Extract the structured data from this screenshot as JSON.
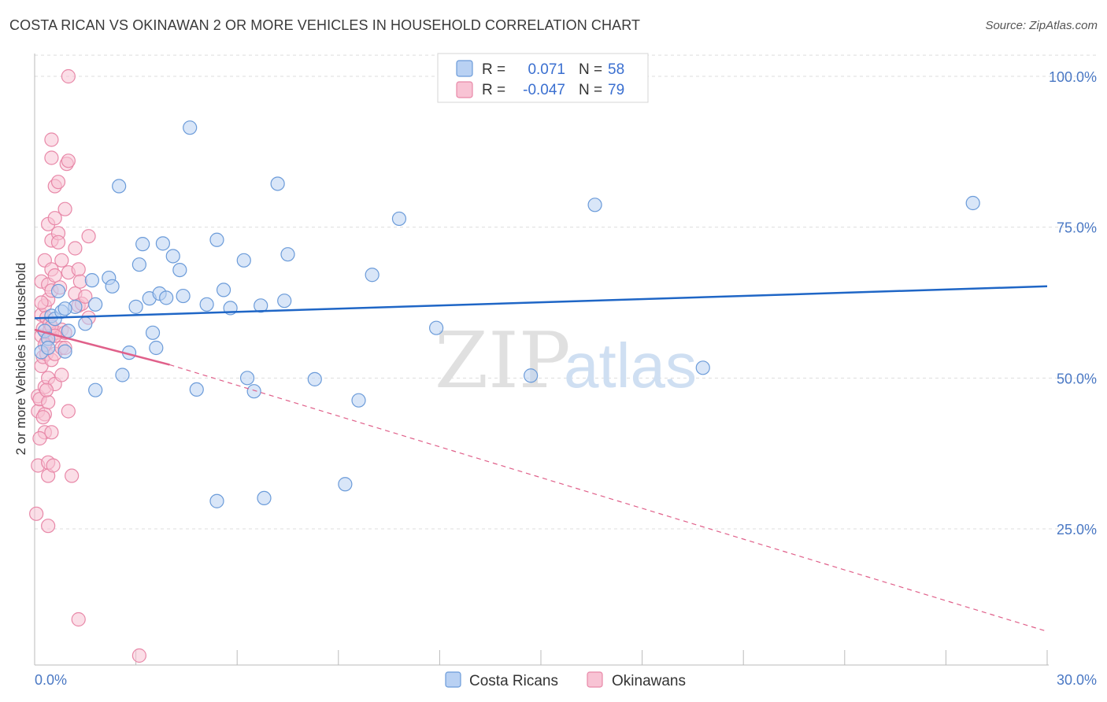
{
  "header": {
    "title": "COSTA RICAN VS OKINAWAN 2 OR MORE VEHICLES IN HOUSEHOLD CORRELATION CHART",
    "source": "Source: ZipAtlas.com"
  },
  "watermark": {
    "zip": "ZIP",
    "atlas": "atlas"
  },
  "legend": {
    "rows": [
      {
        "r_label": "R =",
        "r_value": "0.071",
        "n_label": "N =",
        "n_value": "58"
      },
      {
        "r_label": "R =",
        "r_value": "-0.047",
        "n_label": "N =",
        "n_value": "79"
      }
    ]
  },
  "bottom_legend": {
    "items": [
      "Costa Ricans",
      "Okinawans"
    ]
  },
  "colors": {
    "blue_fill": "#b9d1f3",
    "blue_stroke": "#6b9bd9",
    "blue_line": "#1f66c6",
    "pink_fill": "#f8c3d4",
    "pink_stroke": "#e888a8",
    "pink_line": "#e0608a",
    "grid": "#dddddd",
    "tick_text": "#4a78c4"
  },
  "chart_data": {
    "type": "scatter",
    "title": "COSTA RICAN VS OKINAWAN 2 OR MORE VEHICLES IN HOUSEHOLD CORRELATION CHART",
    "xlabel": "",
    "ylabel": "2 or more Vehicles in Household",
    "xlim": [
      0,
      30
    ],
    "ylim": [
      0,
      105
    ],
    "x_tick_labels": [
      "0.0%",
      "30.0%"
    ],
    "y_ticks": [
      25,
      50,
      75,
      100
    ],
    "y_tick_labels": [
      "25.0%",
      "50.0%",
      "75.0%",
      "100.0%"
    ],
    "grid": true,
    "legend_position": "top-center",
    "series": [
      {
        "name": "Costa Ricans",
        "R": 0.071,
        "N": 58,
        "trend": {
          "x0": 0,
          "y0": 59.9,
          "x1": 30,
          "y1": 65.2
        },
        "points": [
          [
            0.2,
            54.3
          ],
          [
            0.3,
            57.8
          ],
          [
            0.4,
            56.5
          ],
          [
            0.5,
            60.3
          ],
          [
            0.6,
            59.8
          ],
          [
            0.7,
            64.4
          ],
          [
            0.8,
            61.0
          ],
          [
            0.9,
            54.4
          ],
          [
            1.0,
            57.8
          ],
          [
            1.2,
            61.8
          ],
          [
            1.5,
            59.0
          ],
          [
            1.7,
            66.2
          ],
          [
            1.8,
            62.2
          ],
          [
            2.2,
            66.6
          ],
          [
            2.3,
            65.2
          ],
          [
            2.5,
            81.8
          ],
          [
            2.6,
            50.5
          ],
          [
            2.8,
            54.2
          ],
          [
            3.0,
            61.8
          ],
          [
            3.1,
            68.8
          ],
          [
            3.2,
            72.2
          ],
          [
            3.4,
            63.2
          ],
          [
            3.5,
            57.5
          ],
          [
            3.6,
            55.0
          ],
          [
            3.7,
            64.0
          ],
          [
            3.8,
            72.3
          ],
          [
            3.9,
            63.3
          ],
          [
            4.1,
            70.2
          ],
          [
            4.3,
            67.9
          ],
          [
            4.4,
            63.6
          ],
          [
            4.6,
            91.5
          ],
          [
            4.8,
            48.1
          ],
          [
            5.1,
            62.2
          ],
          [
            5.4,
            29.6
          ],
          [
            5.4,
            72.9
          ],
          [
            5.6,
            64.6
          ],
          [
            5.8,
            61.6
          ],
          [
            6.2,
            69.5
          ],
          [
            6.3,
            50.0
          ],
          [
            6.5,
            47.8
          ],
          [
            6.7,
            62.0
          ],
          [
            6.8,
            30.1
          ],
          [
            7.2,
            82.2
          ],
          [
            7.4,
            62.8
          ],
          [
            7.5,
            70.5
          ],
          [
            8.3,
            49.8
          ],
          [
            9.2,
            32.4
          ],
          [
            9.6,
            46.3
          ],
          [
            10.0,
            67.1
          ],
          [
            10.8,
            76.4
          ],
          [
            11.9,
            58.3
          ],
          [
            14.7,
            50.4
          ],
          [
            16.6,
            78.7
          ],
          [
            19.8,
            51.7
          ],
          [
            27.8,
            79.0
          ],
          [
            1.8,
            48.0
          ],
          [
            0.4,
            55.0
          ],
          [
            0.9,
            61.5
          ]
        ]
      },
      {
        "name": "Okinawans",
        "R": -0.047,
        "N": 79,
        "trend": {
          "x0": 0,
          "y0": 58.0,
          "x1": 4.0,
          "y1": 52.2
        },
        "trend_extension": {
          "x0": 4.0,
          "y0": 52.2,
          "x1": 30,
          "y1": 8.0
        },
        "points": [
          [
            0.05,
            27.5
          ],
          [
            0.1,
            35.5
          ],
          [
            0.1,
            44.5
          ],
          [
            0.1,
            47.0
          ],
          [
            0.15,
            46.5
          ],
          [
            0.2,
            52.0
          ],
          [
            0.2,
            57.0
          ],
          [
            0.2,
            60.5
          ],
          [
            0.2,
            66.0
          ],
          [
            0.25,
            53.5
          ],
          [
            0.25,
            58.2
          ],
          [
            0.3,
            62.0
          ],
          [
            0.3,
            48.5
          ],
          [
            0.3,
            44.0
          ],
          [
            0.3,
            69.5
          ],
          [
            0.3,
            41.0
          ],
          [
            0.35,
            60.0
          ],
          [
            0.35,
            56.0
          ],
          [
            0.35,
            54.0
          ],
          [
            0.4,
            65.5
          ],
          [
            0.4,
            75.5
          ],
          [
            0.4,
            63.0
          ],
          [
            0.4,
            50.0
          ],
          [
            0.4,
            46.0
          ],
          [
            0.4,
            36.0
          ],
          [
            0.4,
            33.8
          ],
          [
            0.4,
            25.5
          ],
          [
            0.45,
            58.0
          ],
          [
            0.45,
            59.0
          ],
          [
            0.5,
            89.5
          ],
          [
            0.5,
            86.5
          ],
          [
            0.5,
            72.8
          ],
          [
            0.5,
            68.0
          ],
          [
            0.5,
            64.5
          ],
          [
            0.5,
            57.0
          ],
          [
            0.5,
            53.0
          ],
          [
            0.5,
            41.0
          ],
          [
            0.55,
            35.5
          ],
          [
            0.6,
            81.8
          ],
          [
            0.6,
            76.5
          ],
          [
            0.6,
            67.0
          ],
          [
            0.6,
            54.0
          ],
          [
            0.6,
            49.0
          ],
          [
            0.65,
            57.5
          ],
          [
            0.7,
            82.5
          ],
          [
            0.7,
            74.0
          ],
          [
            0.7,
            72.5
          ],
          [
            0.75,
            65.0
          ],
          [
            0.8,
            58.0
          ],
          [
            0.8,
            55.0
          ],
          [
            0.8,
            50.5
          ],
          [
            0.8,
            69.5
          ],
          [
            0.9,
            78.0
          ],
          [
            0.9,
            57.5
          ],
          [
            0.9,
            55.0
          ],
          [
            0.95,
            85.5
          ],
          [
            1.0,
            86.0
          ],
          [
            1.0,
            100.0
          ],
          [
            1.0,
            67.5
          ],
          [
            1.0,
            44.5
          ],
          [
            1.1,
            33.8
          ],
          [
            1.2,
            71.5
          ],
          [
            1.2,
            64.0
          ],
          [
            1.3,
            62.0
          ],
          [
            1.3,
            10.0
          ],
          [
            1.3,
            68.0
          ],
          [
            1.35,
            66.0
          ],
          [
            1.4,
            62.3
          ],
          [
            1.5,
            63.5
          ],
          [
            1.6,
            60.0
          ],
          [
            1.6,
            73.5
          ],
          [
            3.1,
            4.0
          ],
          [
            0.3,
            55.5
          ],
          [
            0.2,
            62.5
          ],
          [
            0.5,
            58.5
          ],
          [
            0.6,
            57.0
          ],
          [
            0.35,
            48.0
          ],
          [
            0.25,
            43.5
          ],
          [
            0.15,
            40.0
          ]
        ]
      }
    ]
  }
}
